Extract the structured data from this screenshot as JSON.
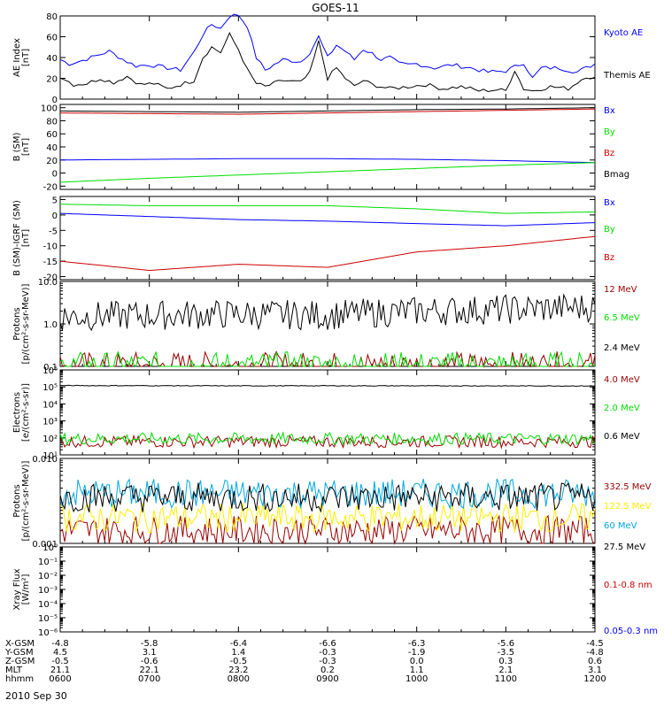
{
  "title": "GOES-11",
  "date": "2010 Sep 30",
  "colors": {
    "axis": "#000000",
    "blue": "#0000ff",
    "green": "#00dd00",
    "red": "#cc0000",
    "darkred": "#990000",
    "yellow": "#ffee00",
    "cyan": "#00a8e0",
    "black": "#000000"
  },
  "xaxis": {
    "ticks": [
      {
        "hhmm": "0600",
        "xgsm": "-4.8",
        "ygsm": "4.5",
        "zgsm": "-0.5",
        "mlt": "21.1"
      },
      {
        "hhmm": "0700",
        "xgsm": "-5.8",
        "ygsm": "3.1",
        "zgsm": "-0.6",
        "mlt": "22.1"
      },
      {
        "hhmm": "0800",
        "xgsm": "-6.4",
        "ygsm": "1.4",
        "zgsm": "-0.5",
        "mlt": "23.2"
      },
      {
        "hhmm": "0900",
        "xgsm": "-6.6",
        "ygsm": "-0.3",
        "zgsm": "-0.3",
        "mlt": "0.2"
      },
      {
        "hhmm": "1000",
        "xgsm": "-6.3",
        "ygsm": "-1.9",
        "zgsm": "0.0",
        "mlt": "1.1"
      },
      {
        "hhmm": "1100",
        "xgsm": "-5.6",
        "ygsm": "-3.5",
        "zgsm": "0.3",
        "mlt": "2.1"
      },
      {
        "hhmm": "1200",
        "xgsm": "-4.5",
        "ygsm": "-4.8",
        "zgsm": "0.6",
        "mlt": "3.1"
      }
    ],
    "row_labels": [
      "X-GSM",
      "Y-GSM",
      "Z-GSM",
      "MLT",
      "hhmm"
    ]
  },
  "chart_data": [
    {
      "type": "line",
      "panel": "AE index",
      "ylabel": "AE Index\n[nT]",
      "ylim": [
        0,
        80
      ],
      "yticks": [
        "0",
        "20",
        "40",
        "60",
        "80"
      ],
      "series": [
        {
          "name": "Kyoto AE",
          "color": "blue",
          "x": [
            0,
            0.1,
            0.2,
            0.35,
            0.55,
            0.75,
            0.85,
            1.0,
            1.2,
            1.35,
            1.5,
            1.6,
            1.7,
            1.8,
            1.9,
            2.0,
            2.1,
            2.2,
            2.3,
            2.5,
            2.7,
            2.8,
            2.9,
            3.0,
            3.1,
            3.2,
            3.3,
            3.4,
            3.5,
            3.6,
            3.7,
            3.8,
            3.9,
            4.0,
            4.2,
            4.4,
            4.6,
            4.8,
            5.0,
            5.2,
            5.3,
            5.4,
            5.6,
            5.8,
            6.0
          ],
          "y": [
            38,
            34,
            36,
            40,
            46,
            36,
            32,
            33,
            30,
            28,
            45,
            62,
            72,
            68,
            80,
            81,
            70,
            40,
            28,
            38,
            36,
            45,
            60,
            40,
            52,
            46,
            38,
            48,
            44,
            38,
            40,
            34,
            33,
            34,
            30,
            33,
            30,
            26,
            27,
            35,
            20,
            30,
            30,
            26,
            34
          ]
        },
        {
          "name": "Themis AE",
          "color": "black",
          "x": [
            0,
            0.15,
            0.3,
            0.45,
            0.6,
            0.75,
            0.9,
            1.05,
            1.2,
            1.35,
            1.5,
            1.6,
            1.7,
            1.8,
            1.9,
            2.0,
            2.1,
            2.2,
            2.3,
            2.5,
            2.7,
            2.8,
            2.9,
            3.0,
            3.1,
            3.2,
            3.3,
            3.4,
            3.5,
            3.7,
            3.9,
            4.1,
            4.3,
            4.5,
            4.7,
            4.9,
            5.0,
            5.1,
            5.2,
            5.3,
            5.5,
            5.7,
            5.9,
            6.0
          ],
          "y": [
            22,
            14,
            15,
            20,
            16,
            22,
            14,
            15,
            10,
            14,
            18,
            40,
            50,
            45,
            62,
            48,
            28,
            15,
            12,
            18,
            16,
            25,
            55,
            20,
            30,
            20,
            12,
            18,
            14,
            10,
            12,
            14,
            10,
            12,
            8,
            9,
            8,
            28,
            10,
            8,
            12,
            10,
            22,
            20
          ]
        }
      ]
    },
    {
      "type": "line",
      "panel": "B (SM)",
      "ylabel": "B (SM)\n[nT]",
      "ylim": [
        -25,
        105
      ],
      "yticks": [
        "-20",
        "0",
        "20",
        "40",
        "60",
        "80",
        "100"
      ],
      "series": [
        {
          "name": "Bx",
          "color": "blue",
          "x": [
            0,
            1,
            2,
            3,
            4,
            5,
            6
          ],
          "y": [
            20,
            21,
            22,
            22,
            21,
            19,
            16
          ]
        },
        {
          "name": "By",
          "color": "green",
          "x": [
            0,
            1,
            2,
            3,
            4,
            5,
            6
          ],
          "y": [
            -14,
            -8,
            -3,
            2,
            7,
            12,
            16
          ]
        },
        {
          "name": "Bz",
          "color": "red",
          "x": [
            0,
            1,
            2,
            3,
            4,
            5,
            6
          ],
          "y": [
            92,
            91,
            90,
            92,
            94,
            96,
            98
          ]
        },
        {
          "name": "Bmag",
          "color": "black",
          "x": [
            0,
            1,
            2,
            3,
            4,
            5,
            6
          ],
          "y": [
            95,
            94,
            93,
            95,
            97,
            98,
            100
          ]
        }
      ]
    },
    {
      "type": "line",
      "panel": "B (SM) - IGRF (SM)",
      "ylabel": "B (SM)-IGRF (SM)\n[nT]",
      "ylim": [
        -21,
        6
      ],
      "yticks": [
        "-20",
        "-15",
        "-10",
        "-5",
        "0",
        "5"
      ],
      "series": [
        {
          "name": "Bx",
          "color": "blue",
          "x": [
            0,
            1,
            2,
            3,
            4,
            5,
            6
          ],
          "y": [
            0.5,
            -0.5,
            -1.5,
            -2,
            -2.8,
            -3.5,
            -2.5
          ]
        },
        {
          "name": "By",
          "color": "green",
          "x": [
            0,
            1,
            2,
            3,
            4,
            5,
            6
          ],
          "y": [
            3.5,
            3,
            3,
            3,
            2,
            0.5,
            1
          ]
        },
        {
          "name": "Bz",
          "color": "red",
          "x": [
            0,
            1,
            2,
            3,
            4,
            5,
            6
          ],
          "y": [
            -15,
            -18,
            -16,
            -17,
            -12,
            -10,
            -7
          ]
        }
      ]
    },
    {
      "type": "line",
      "panel": "Protons (high energy)",
      "ylabel": "Protons\n[p/(cm²-s-sr-MeV)]",
      "ylog": true,
      "ylim": [
        0.1,
        10
      ],
      "yticks": [
        "0.1",
        "1.0",
        "10.0"
      ],
      "series": [
        {
          "name": "12 MeV",
          "color": "darkred",
          "x": [
            0,
            6
          ],
          "y": [
            0.1,
            0.1
          ]
        },
        {
          "name": "6.5 MeV",
          "color": "green",
          "x": [
            0,
            6
          ],
          "y": [
            0.1,
            0.1
          ]
        },
        {
          "name": "2.4 MeV",
          "color": "black",
          "x": [
            0,
            1,
            2,
            3,
            4,
            5,
            6
          ],
          "y": [
            1.5,
            1.6,
            1.7,
            1.6,
            2.0,
            2.2,
            2.5
          ]
        }
      ]
    },
    {
      "type": "line",
      "panel": "Electrons",
      "ylabel": "Electrons\n[e/(cm²-s-sr)]",
      "ylog": true,
      "ylim": [
        10,
        1000000
      ],
      "yticks": [
        "10¹",
        "10²",
        "10³",
        "10⁴",
        "10⁵",
        "10⁶"
      ],
      "series": [
        {
          "name": "4.0 MeV",
          "color": "darkred",
          "x": [
            0,
            6
          ],
          "y": [
            60,
            60
          ]
        },
        {
          "name": "2.0 MeV",
          "color": "green",
          "x": [
            0,
            6
          ],
          "y": [
            90,
            90
          ]
        },
        {
          "name": "0.6 MeV",
          "color": "black",
          "x": [
            0,
            1,
            2,
            3,
            4,
            5,
            6
          ],
          "y": [
            120000,
            118000,
            116000,
            117000,
            116000,
            115000,
            114000
          ]
        }
      ]
    },
    {
      "type": "line",
      "panel": "Protons (low flux)",
      "ylabel": "Protons\n[p/(cm²-s-sr-MeV)]",
      "ylog": true,
      "ylim": [
        0.001,
        0.1
      ],
      "yticks": [
        "0.001",
        "0.010"
      ],
      "series": [
        {
          "name": "332.5 MeV",
          "color": "darkred",
          "x": [
            0,
            6
          ],
          "y": [
            0.002,
            0.002
          ]
        },
        {
          "name": "122.5 MeV",
          "color": "yellow",
          "x": [
            0,
            6
          ],
          "y": [
            0.004,
            0.004
          ]
        },
        {
          "name": "60 MeV",
          "color": "cyan",
          "x": [
            0,
            6
          ],
          "y": [
            0.015,
            0.015
          ]
        },
        {
          "name": "27.5 MeV",
          "color": "black",
          "x": [
            0,
            6
          ],
          "y": [
            0.012,
            0.012
          ]
        }
      ]
    },
    {
      "type": "line",
      "panel": "Xray Flux",
      "ylabel": "Xray Flux\n[W/m²]",
      "ylog": true,
      "ylim": [
        1e-06,
        1
      ],
      "yticks": [
        "10⁻⁶",
        "10⁻⁵",
        "10⁻⁴",
        "10⁻³",
        "10⁻²",
        "10⁻¹",
        "10⁰"
      ],
      "series": [
        {
          "name": "0.1-0.8 nm",
          "color": "red",
          "x": [],
          "y": []
        },
        {
          "name": "0.05-0.3 nm",
          "color": "blue",
          "x": [],
          "y": []
        }
      ]
    }
  ]
}
